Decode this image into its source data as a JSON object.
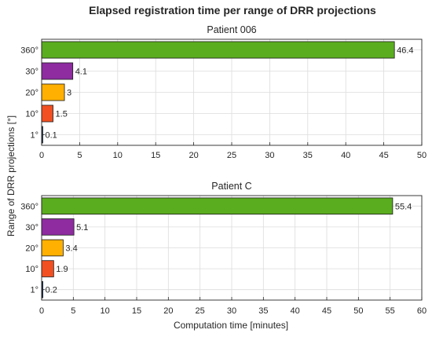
{
  "figure": {
    "title": "Elapsed registration time per range of DRR projections",
    "ylabel": "Range of DRR projections [°]",
    "xlabel": "Computation time [minutes]"
  },
  "chart_data": [
    {
      "type": "bar",
      "orientation": "horizontal",
      "title": "Patient 006",
      "categories": [
        "1°",
        "10°",
        "20°",
        "30°",
        "360°"
      ],
      "values": [
        0.1,
        1.5,
        3,
        4.1,
        46.4
      ],
      "value_labels": [
        "0.1",
        "1.5",
        "3",
        "4.1",
        "46.4"
      ],
      "colors": [
        "#1f3f66",
        "#f25022",
        "#ffb000",
        "#8e2ca0",
        "#5aad1f"
      ],
      "xlim": [
        0,
        50
      ],
      "xticks": [
        0,
        5,
        10,
        15,
        20,
        25,
        30,
        35,
        40,
        45,
        50
      ],
      "grid": true
    },
    {
      "type": "bar",
      "orientation": "horizontal",
      "title": "Patient C",
      "categories": [
        "1°",
        "10°",
        "20°",
        "30°",
        "360°"
      ],
      "values": [
        0.2,
        1.9,
        3.4,
        5.1,
        55.4
      ],
      "value_labels": [
        "0.2",
        "1.9",
        "3.4",
        "5.1",
        "55.4"
      ],
      "colors": [
        "#1f3f66",
        "#f25022",
        "#ffb000",
        "#8e2ca0",
        "#5aad1f"
      ],
      "xlim": [
        0,
        60
      ],
      "xticks": [
        0,
        5,
        10,
        15,
        20,
        25,
        30,
        35,
        40,
        45,
        50,
        55,
        60
      ],
      "grid": true
    }
  ]
}
